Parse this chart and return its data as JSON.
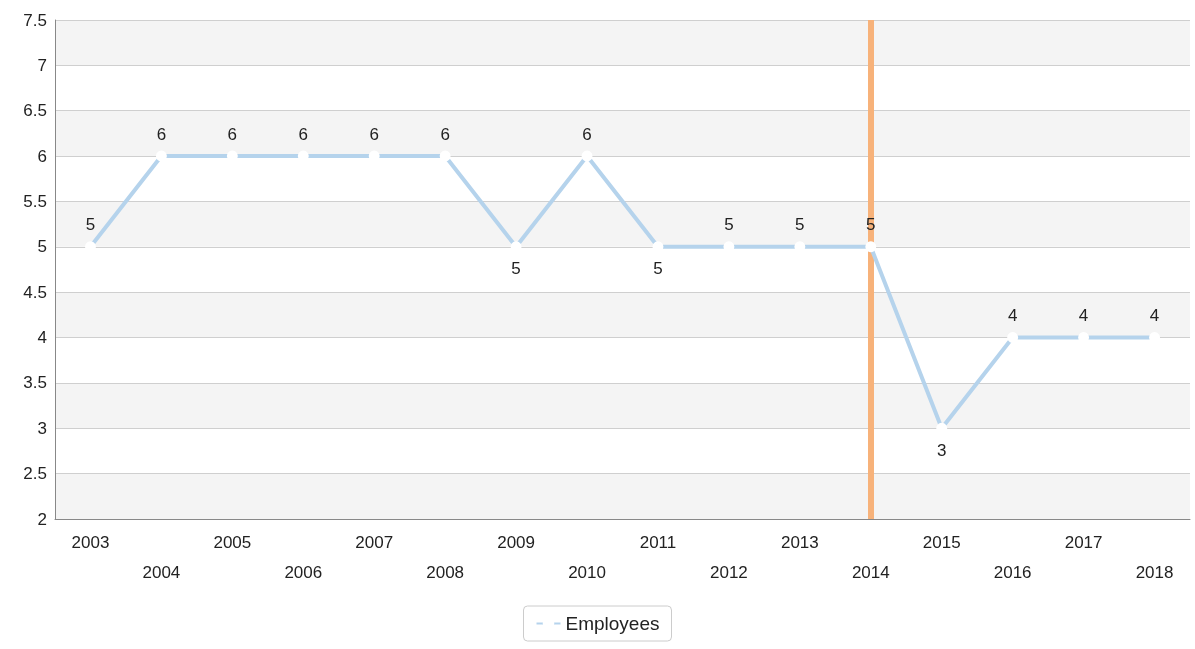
{
  "chart_data": {
    "type": "line",
    "categories": [
      "2003",
      "2004",
      "2005",
      "2006",
      "2007",
      "2008",
      "2009",
      "2010",
      "2011",
      "2012",
      "2013",
      "2014",
      "2015",
      "2016",
      "2017",
      "2018"
    ],
    "series": [
      {
        "name": "Employees",
        "color": "#b5d3ec",
        "values": [
          5,
          6,
          6,
          6,
          6,
          6,
          5,
          6,
          5,
          5,
          5,
          5,
          3,
          4,
          4,
          4
        ]
      }
    ],
    "ylim": [
      2,
      7.5
    ],
    "yticks": [
      2,
      2.5,
      3,
      3.5,
      4,
      4.5,
      5,
      5.5,
      6,
      6.5,
      7,
      7.5
    ],
    "ref_lines": [
      {
        "axis": "x",
        "value": "2014",
        "color": "#f7b27a"
      }
    ],
    "grid": true,
    "legend": "bottom",
    "marker": "circle",
    "data_labels": true
  }
}
